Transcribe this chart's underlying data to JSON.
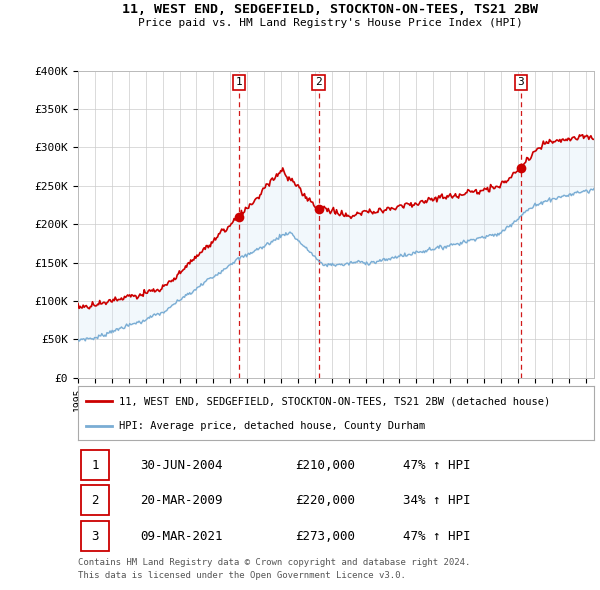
{
  "title": "11, WEST END, SEDGEFIELD, STOCKTON-ON-TEES, TS21 2BW",
  "subtitle": "Price paid vs. HM Land Registry's House Price Index (HPI)",
  "legend_property": "11, WEST END, SEDGEFIELD, STOCKTON-ON-TEES, TS21 2BW (detached house)",
  "legend_hpi": "HPI: Average price, detached house, County Durham",
  "footer1": "Contains HM Land Registry data © Crown copyright and database right 2024.",
  "footer2": "This data is licensed under the Open Government Licence v3.0.",
  "sales": [
    {
      "num": "1",
      "date": "30-JUN-2004",
      "price": "£210,000",
      "hpi_pct": "47% ↑ HPI"
    },
    {
      "num": "2",
      "date": "20-MAR-2009",
      "price": "£220,000",
      "hpi_pct": "34% ↑ HPI"
    },
    {
      "num": "3",
      "date": "09-MAR-2021",
      "price": "£273,000",
      "hpi_pct": "47% ↑ HPI"
    }
  ],
  "sale_years": [
    2004.5,
    2009.22,
    2021.19
  ],
  "sale_prices": [
    210000,
    220000,
    273000
  ],
  "ylim": [
    0,
    400000
  ],
  "xlim": [
    1995,
    2025.5
  ],
  "property_color": "#cc0000",
  "hpi_color": "#7aadd4",
  "sale_line_color": "#cc0000",
  "background_color": "#ffffff",
  "grid_color": "#cccccc",
  "shade_color": "#d6e8f7"
}
